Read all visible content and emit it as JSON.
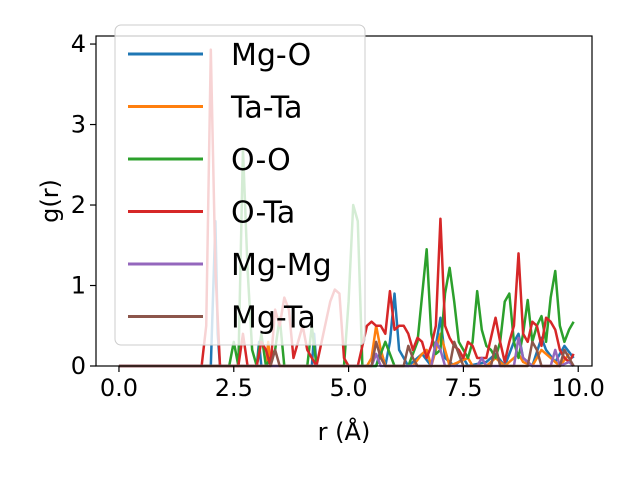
{
  "chart_data": {
    "type": "line",
    "xlabel": "r (Å)",
    "ylabel": "g(r)",
    "xlim": [
      -0.5,
      10.3
    ],
    "ylim": [
      0,
      4.1
    ],
    "xticks": [
      0.0,
      2.5,
      5.0,
      7.5,
      10.0
    ],
    "xtick_labels": [
      "0.0",
      "2.5",
      "5.0",
      "7.5",
      "10.0"
    ],
    "yticks": [
      0,
      1,
      2,
      3,
      4
    ],
    "ytick_labels": [
      "0",
      "1",
      "2",
      "3",
      "4"
    ],
    "grid": false,
    "legend_position": "upper-left",
    "series": [
      {
        "name": "Mg-O",
        "color": "#1f77b4",
        "points": [
          [
            0,
            0
          ],
          [
            2.0,
            0
          ],
          [
            2.05,
            0.9
          ],
          [
            2.1,
            1.8
          ],
          [
            2.15,
            0.4
          ],
          [
            2.2,
            0
          ],
          [
            3.0,
            0
          ],
          [
            3.05,
            0.3
          ],
          [
            3.1,
            0
          ],
          [
            4.2,
            0
          ],
          [
            4.25,
            0.4
          ],
          [
            4.3,
            0
          ],
          [
            5.6,
            0
          ],
          [
            5.7,
            0.2
          ],
          [
            5.8,
            0
          ],
          [
            5.9,
            0.3
          ],
          [
            6.0,
            0.9
          ],
          [
            6.1,
            0.2
          ],
          [
            6.3,
            0
          ],
          [
            6.6,
            0.15
          ],
          [
            6.8,
            0
          ],
          [
            6.9,
            0.25
          ],
          [
            7.0,
            0.6
          ],
          [
            7.1,
            0.1
          ],
          [
            7.3,
            0
          ],
          [
            7.5,
            0.1
          ],
          [
            7.6,
            0
          ],
          [
            8.0,
            0.05
          ],
          [
            8.2,
            0.15
          ],
          [
            8.4,
            0
          ],
          [
            8.6,
            0.3
          ],
          [
            8.7,
            0.4
          ],
          [
            8.8,
            0.1
          ],
          [
            9.0,
            0
          ],
          [
            9.2,
            0.35
          ],
          [
            9.3,
            0.2
          ],
          [
            9.5,
            0.05
          ],
          [
            9.7,
            0.25
          ],
          [
            9.9,
            0.1
          ]
        ]
      },
      {
        "name": "Ta-Ta",
        "color": "#ff7f0e",
        "points": [
          [
            0,
            0
          ],
          [
            3.2,
            0
          ],
          [
            3.25,
            0.3
          ],
          [
            3.3,
            0
          ],
          [
            5.4,
            0
          ],
          [
            5.5,
            0.1
          ],
          [
            5.6,
            0.5
          ],
          [
            5.7,
            0.2
          ],
          [
            5.8,
            0
          ],
          [
            6.4,
            0
          ],
          [
            6.6,
            0.15
          ],
          [
            6.7,
            0.2
          ],
          [
            6.8,
            0
          ],
          [
            7.0,
            0.4
          ],
          [
            7.1,
            0.2
          ],
          [
            7.2,
            0
          ],
          [
            7.6,
            0.1
          ],
          [
            7.7,
            0
          ],
          [
            8.0,
            0
          ],
          [
            8.2,
            0.1
          ],
          [
            8.4,
            0
          ],
          [
            8.7,
            0.15
          ],
          [
            8.8,
            0.05
          ],
          [
            9.0,
            0
          ],
          [
            9.2,
            0.2
          ],
          [
            9.4,
            0.1
          ],
          [
            9.6,
            0
          ],
          [
            9.8,
            0.15
          ]
        ]
      },
      {
        "name": "O-O",
        "color": "#2ca02c",
        "points": [
          [
            0,
            0
          ],
          [
            2.4,
            0
          ],
          [
            2.5,
            0.3
          ],
          [
            2.6,
            0
          ],
          [
            2.7,
            2.7
          ],
          [
            2.8,
            1.2
          ],
          [
            2.9,
            0.2
          ],
          [
            3.0,
            0
          ],
          [
            3.1,
            0.4
          ],
          [
            3.2,
            0
          ],
          [
            3.4,
            0.2
          ],
          [
            3.5,
            0.6
          ],
          [
            3.6,
            0
          ],
          [
            4.1,
            0
          ],
          [
            4.2,
            0.5
          ],
          [
            4.3,
            0
          ],
          [
            4.9,
            0
          ],
          [
            5.0,
            0.8
          ],
          [
            5.1,
            2.0
          ],
          [
            5.2,
            1.8
          ],
          [
            5.3,
            0
          ],
          [
            5.6,
            0
          ],
          [
            5.8,
            0.3
          ],
          [
            6.0,
            0
          ],
          [
            6.3,
            0
          ],
          [
            6.5,
            0.3
          ],
          [
            6.7,
            1.45
          ],
          [
            6.8,
            0.4
          ],
          [
            6.9,
            0.15
          ],
          [
            7.0,
            0.2
          ],
          [
            7.1,
            0.9
          ],
          [
            7.2,
            1.22
          ],
          [
            7.3,
            0.8
          ],
          [
            7.4,
            0.3
          ],
          [
            7.6,
            0.1
          ],
          [
            7.7,
            0.3
          ],
          [
            7.8,
            0.93
          ],
          [
            7.9,
            0.45
          ],
          [
            8.0,
            0.25
          ],
          [
            8.1,
            0.2
          ],
          [
            8.2,
            0.1
          ],
          [
            8.3,
            0.3
          ],
          [
            8.4,
            0.8
          ],
          [
            8.5,
            0.9
          ],
          [
            8.6,
            0.3
          ],
          [
            8.7,
            0.1
          ],
          [
            8.8,
            0.4
          ],
          [
            8.9,
            0.82
          ],
          [
            9.0,
            0.3
          ],
          [
            9.1,
            0.5
          ],
          [
            9.2,
            0.62
          ],
          [
            9.3,
            0.3
          ],
          [
            9.4,
            0.85
          ],
          [
            9.5,
            1.18
          ],
          [
            9.6,
            0.5
          ],
          [
            9.7,
            0.3
          ],
          [
            9.8,
            0.45
          ],
          [
            9.9,
            0.55
          ]
        ]
      },
      {
        "name": "O-Ta",
        "color": "#d62728",
        "points": [
          [
            0,
            0
          ],
          [
            1.8,
            0
          ],
          [
            1.9,
            0.5
          ],
          [
            2.0,
            3.93
          ],
          [
            2.1,
            1.2
          ],
          [
            2.2,
            0
          ],
          [
            2.6,
            0
          ],
          [
            2.7,
            0.4
          ],
          [
            2.8,
            0
          ],
          [
            3.0,
            0
          ],
          [
            3.1,
            0.3
          ],
          [
            3.2,
            0.2
          ],
          [
            3.3,
            0
          ],
          [
            3.4,
            0.7
          ],
          [
            3.5,
            0.5
          ],
          [
            3.6,
            0.85
          ],
          [
            3.7,
            0.7
          ],
          [
            3.8,
            0.1
          ],
          [
            3.9,
            0.3
          ],
          [
            4.0,
            0.5
          ],
          [
            4.1,
            0.2
          ],
          [
            4.3,
            0
          ],
          [
            4.6,
            0.8
          ],
          [
            4.7,
            0.95
          ],
          [
            4.8,
            0.9
          ],
          [
            4.9,
            0.1
          ],
          [
            5.0,
            0
          ],
          [
            5.2,
            0
          ],
          [
            5.4,
            0.5
          ],
          [
            5.5,
            0.55
          ],
          [
            5.6,
            0.5
          ],
          [
            5.7,
            0.5
          ],
          [
            5.8,
            0.4
          ],
          [
            5.9,
            0.93
          ],
          [
            6.0,
            0.45
          ],
          [
            6.1,
            0.5
          ],
          [
            6.2,
            0.5
          ],
          [
            6.3,
            0.4
          ],
          [
            6.4,
            0.2
          ],
          [
            6.5,
            0.35
          ],
          [
            6.6,
            0.3
          ],
          [
            6.7,
            0.1
          ],
          [
            6.8,
            0.25
          ],
          [
            6.9,
            0.5
          ],
          [
            7.0,
            1.83
          ],
          [
            7.1,
            0.5
          ],
          [
            7.2,
            0.35
          ],
          [
            7.3,
            0.25
          ],
          [
            7.4,
            0.2
          ],
          [
            7.5,
            0.1
          ],
          [
            7.6,
            0.3
          ],
          [
            7.7,
            0.25
          ],
          [
            7.8,
            0.1
          ],
          [
            8.0,
            0.1
          ],
          [
            8.2,
            0.6
          ],
          [
            8.3,
            0.3
          ],
          [
            8.4,
            0.05
          ],
          [
            8.5,
            0.3
          ],
          [
            8.6,
            0.5
          ],
          [
            8.7,
            1.4
          ],
          [
            8.8,
            0.4
          ],
          [
            8.9,
            0.3
          ],
          [
            9.0,
            0.55
          ],
          [
            9.1,
            0.5
          ],
          [
            9.2,
            0.25
          ],
          [
            9.3,
            0.6
          ],
          [
            9.4,
            0.55
          ],
          [
            9.5,
            0.45
          ],
          [
            9.6,
            0.2
          ],
          [
            9.7,
            0.1
          ],
          [
            9.8,
            0.05
          ],
          [
            9.9,
            0.15
          ]
        ]
      },
      {
        "name": "Mg-Mg",
        "color": "#9467bd",
        "points": [
          [
            0,
            0
          ],
          [
            5.5,
            0
          ],
          [
            5.6,
            0.15
          ],
          [
            5.7,
            0
          ],
          [
            6.8,
            0
          ],
          [
            6.9,
            0.3
          ],
          [
            7.0,
            0.2
          ],
          [
            7.1,
            0
          ],
          [
            7.8,
            0
          ],
          [
            7.9,
            0.1
          ],
          [
            8.0,
            0
          ],
          [
            8.6,
            0
          ],
          [
            8.7,
            0.35
          ],
          [
            8.8,
            0.1
          ],
          [
            9.0,
            0
          ],
          [
            9.4,
            0
          ],
          [
            9.5,
            0.2
          ],
          [
            9.6,
            0
          ],
          [
            9.8,
            0.05
          ],
          [
            9.9,
            0
          ]
        ]
      },
      {
        "name": "Mg-Ta",
        "color": "#8c564b",
        "points": [
          [
            0,
            0
          ],
          [
            3.3,
            0
          ],
          [
            3.4,
            0.2
          ],
          [
            3.5,
            0
          ],
          [
            5.5,
            0
          ],
          [
            5.6,
            0.3
          ],
          [
            5.7,
            0.1
          ],
          [
            5.8,
            0
          ],
          [
            6.2,
            0
          ],
          [
            6.3,
            0.25
          ],
          [
            6.4,
            0.1
          ],
          [
            6.5,
            0
          ],
          [
            7.2,
            0
          ],
          [
            7.3,
            0.3
          ],
          [
            7.4,
            0.15
          ],
          [
            7.5,
            0
          ],
          [
            8.1,
            0
          ],
          [
            8.2,
            0.25
          ],
          [
            8.3,
            0
          ],
          [
            8.9,
            0
          ],
          [
            9.0,
            0.3
          ],
          [
            9.1,
            0.2
          ],
          [
            9.2,
            0
          ],
          [
            9.6,
            0
          ],
          [
            9.7,
            0.2
          ],
          [
            9.8,
            0.1
          ],
          [
            9.9,
            0
          ]
        ]
      }
    ]
  }
}
